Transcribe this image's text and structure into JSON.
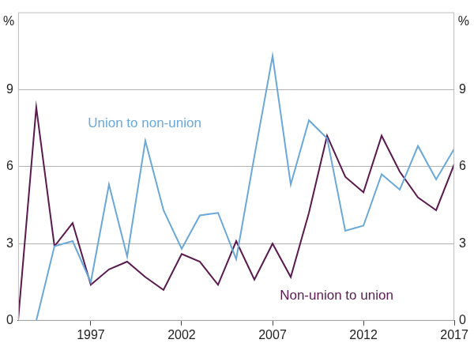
{
  "chart_data": {
    "type": "line",
    "y_label": "%",
    "x": [
      1993,
      1994,
      1995,
      1996,
      1997,
      1998,
      1999,
      2000,
      2001,
      2002,
      2003,
      2004,
      2005,
      2006,
      2007,
      2008,
      2009,
      2010,
      2011,
      2012,
      2013,
      2014,
      2015,
      2016,
      2017
    ],
    "series": [
      {
        "name": "Union to non-union",
        "color": "#6aa8da",
        "values": [
          null,
          0,
          2.9,
          3.1,
          1.5,
          5.3,
          2.5,
          7.0,
          4.3,
          2.8,
          4.1,
          4.2,
          2.4,
          6.4,
          10.3,
          5.3,
          7.8,
          7.1,
          3.5,
          3.7,
          5.7,
          5.1,
          6.8,
          5.5,
          6.7
        ]
      },
      {
        "name": "Non-union to union",
        "color": "#5a1a50",
        "values": [
          0,
          8.3,
          2.9,
          3.8,
          1.4,
          2.0,
          2.3,
          1.7,
          1.2,
          2.6,
          2.3,
          1.4,
          3.1,
          1.6,
          3.0,
          1.7,
          4.2,
          7.2,
          5.6,
          5.0,
          7.2,
          5.8,
          4.8,
          4.3,
          6.1
        ]
      }
    ],
    "xlim": [
      1993,
      2017
    ],
    "xticks": [
      1997,
      2002,
      2007,
      2012,
      2017
    ],
    "ylim": [
      0,
      12
    ],
    "yticks": [
      0,
      3,
      6,
      9
    ],
    "y2lim": [
      0,
      12
    ],
    "y2ticks": [
      0,
      3,
      6,
      9
    ],
    "grid": true
  }
}
